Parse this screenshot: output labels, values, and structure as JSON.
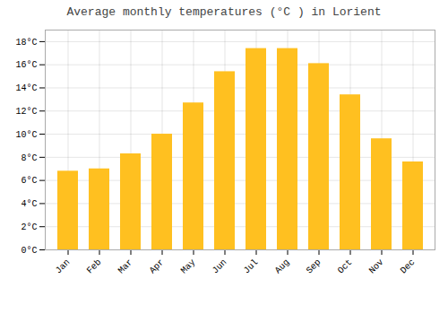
{
  "chart_data": {
    "type": "bar",
    "title": "Average monthly temperatures (°C ) in Lorient",
    "categories": [
      "Jan",
      "Feb",
      "Mar",
      "Apr",
      "May",
      "Jun",
      "Jul",
      "Aug",
      "Sep",
      "Oct",
      "Nov",
      "Dec"
    ],
    "values": [
      6.8,
      7.0,
      8.3,
      10.0,
      12.7,
      15.4,
      17.4,
      17.4,
      16.1,
      13.4,
      9.6,
      7.6
    ],
    "color": "#FFC020",
    "ylim": [
      0,
      19
    ],
    "yticks": [
      {
        "value": 0,
        "label": "0°C"
      },
      {
        "value": 2,
        "label": "2°C"
      },
      {
        "value": 4,
        "label": "4°C"
      },
      {
        "value": 6,
        "label": "6°C"
      },
      {
        "value": 8,
        "label": "8°C"
      },
      {
        "value": 10,
        "label": "10°C"
      },
      {
        "value": 12,
        "label": "12°C"
      },
      {
        "value": 14,
        "label": "14°C"
      },
      {
        "value": 16,
        "label": "16°C"
      },
      {
        "value": 18,
        "label": "18°C"
      }
    ],
    "grid": true
  }
}
